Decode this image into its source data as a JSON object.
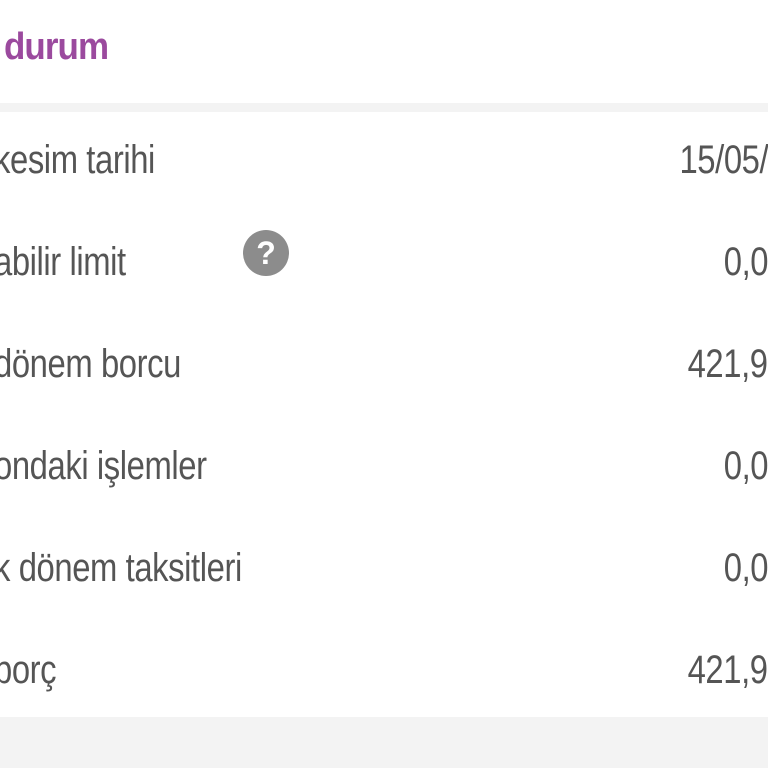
{
  "header": {
    "title": "durum"
  },
  "rows": [
    {
      "label": "kesim tarihi",
      "value": "15/05/"
    },
    {
      "label": "abilir limit",
      "value": "0,0"
    },
    {
      "label": "dönem borcu",
      "value": "421,9",
      "help_icon": "question-circle-icon",
      "help_glyph": "?"
    },
    {
      "label": "ondaki işlemler",
      "value": "0,0"
    },
    {
      "label": "k dönem taksitleri",
      "value": "0,0"
    },
    {
      "label": "borç",
      "value": "421,9"
    }
  ],
  "colors": {
    "accent": "#9b4a9e",
    "text": "#555555",
    "background": "#f3f3f3"
  }
}
